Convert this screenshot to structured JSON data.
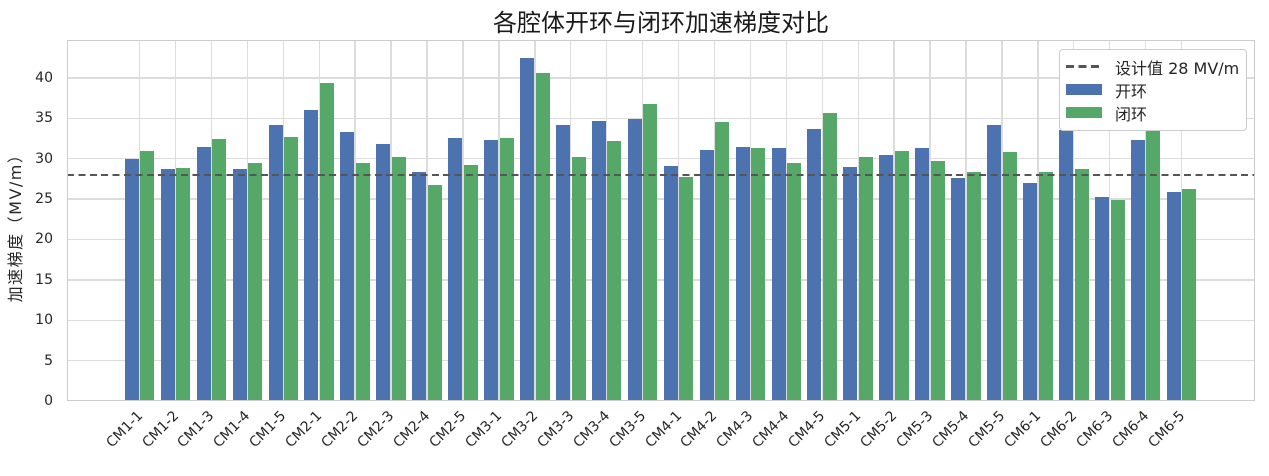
{
  "chart_data": {
    "type": "bar",
    "title": "各腔体开环与闭环加速梯度对比",
    "ylabel": "加速梯度（MV/m）",
    "xlabel": "",
    "ylim": [
      0,
      44.7
    ],
    "yticks": [
      0,
      5,
      10,
      15,
      20,
      25,
      30,
      35,
      40
    ],
    "grid": true,
    "legend_position": "upper right",
    "reference_line": {
      "value": 28,
      "label": "设计值 28 MV/m",
      "color": "#555555",
      "style": "dashed"
    },
    "categories": [
      "CM1-1",
      "CM1-2",
      "CM1-3",
      "CM1-4",
      "CM1-5",
      "CM2-1",
      "CM2-2",
      "CM2-3",
      "CM2-4",
      "CM2-5",
      "CM3-1",
      "CM3-2",
      "CM3-3",
      "CM3-4",
      "CM3-5",
      "CM4-1",
      "CM4-2",
      "CM4-3",
      "CM4-4",
      "CM4-5",
      "CM5-1",
      "CM5-2",
      "CM5-3",
      "CM5-4",
      "CM5-5",
      "CM6-1",
      "CM6-2",
      "CM6-3",
      "CM6-4",
      "CM6-5"
    ],
    "series": [
      {
        "name": "开环",
        "color": "#4C72B0",
        "values": [
          29.9,
          28.7,
          31.4,
          28.7,
          34.1,
          36.0,
          33.3,
          31.8,
          28.3,
          32.6,
          32.3,
          42.4,
          34.2,
          34.7,
          34.9,
          29.1,
          31.1,
          31.4,
          31.3,
          33.7,
          29.0,
          30.5,
          31.3,
          27.6,
          34.1,
          27.0,
          33.6,
          25.2,
          32.3,
          25.9
        ]
      },
      {
        "name": "闭环",
        "color": "#55A868",
        "values": [
          31.0,
          28.8,
          32.4,
          29.4,
          32.7,
          39.3,
          29.4,
          30.2,
          26.7,
          29.2,
          32.5,
          40.6,
          30.2,
          32.2,
          36.8,
          27.7,
          34.5,
          31.3,
          29.4,
          35.7,
          30.2,
          31.0,
          29.7,
          28.3,
          30.8,
          28.3,
          28.7,
          24.9,
          33.6,
          26.2
        ]
      }
    ]
  }
}
